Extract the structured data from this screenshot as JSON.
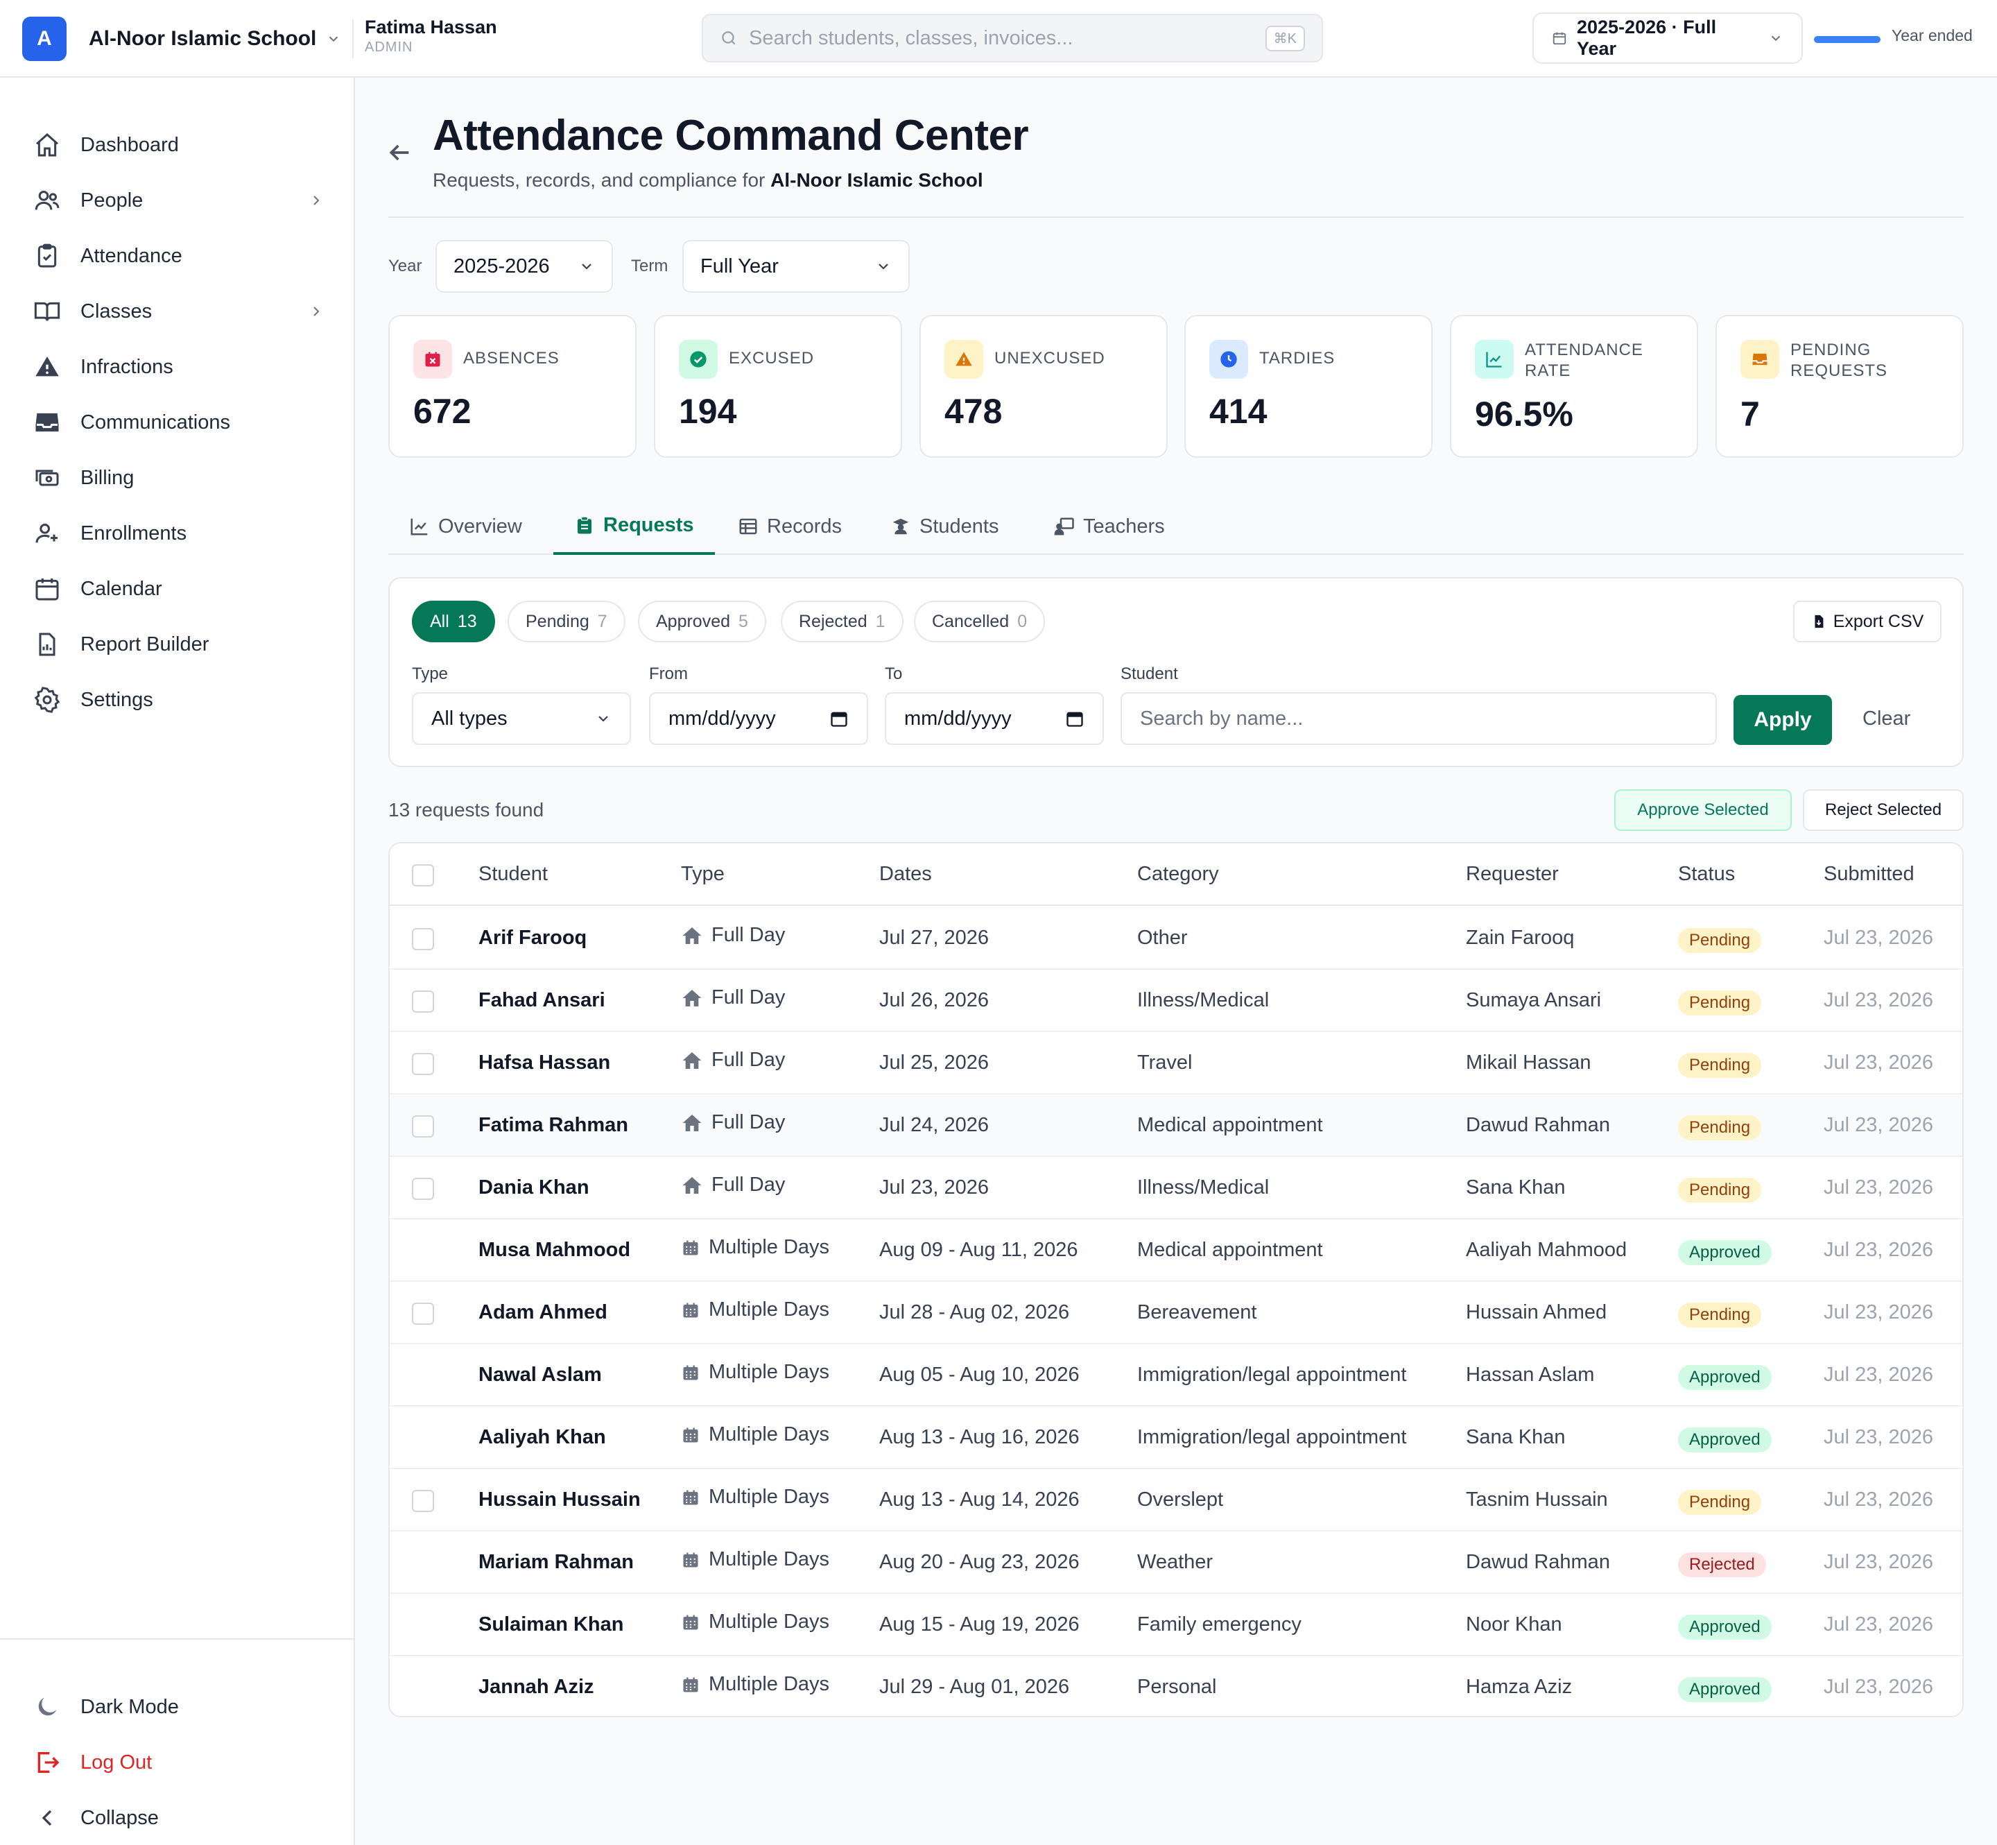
{
  "app": {
    "logo_letter": "A",
    "school_name": "Al-Noor Islamic School",
    "user_name": "Fatima Hassan",
    "user_role": "ADMIN"
  },
  "search": {
    "placeholder": "Search students, classes, invoices...",
    "shortcut": "⌘K"
  },
  "year_selector": {
    "label": "2025-2026 · Full Year",
    "status": "Year ended"
  },
  "sidebar": {
    "items": [
      {
        "label": "Dashboard",
        "icon": "home-icon"
      },
      {
        "label": "People",
        "icon": "users-icon",
        "has_children": true
      },
      {
        "label": "Attendance",
        "icon": "clipboard-check-icon"
      },
      {
        "label": "Classes",
        "icon": "book-open-icon",
        "has_children": true
      },
      {
        "label": "Infractions",
        "icon": "warning-icon"
      },
      {
        "label": "Communications",
        "icon": "inbox-icon"
      },
      {
        "label": "Billing",
        "icon": "cash-icon"
      },
      {
        "label": "Enrollments",
        "icon": "user-plus-icon"
      },
      {
        "label": "Calendar",
        "icon": "calendar-icon"
      },
      {
        "label": "Report Builder",
        "icon": "report-icon"
      },
      {
        "label": "Settings",
        "icon": "gear-icon"
      }
    ],
    "bottom": {
      "dark_mode": "Dark Mode",
      "logout": "Log Out",
      "collapse": "Collapse"
    }
  },
  "page": {
    "title": "Attendance Command Center",
    "subtitle_prefix": "Requests, records, and compliance for",
    "subtitle_school": "Al-Noor Islamic School"
  },
  "filters": {
    "year_label": "Year",
    "year_value": "2025-2026",
    "term_label": "Term",
    "term_value": "Full Year"
  },
  "stats": [
    {
      "label": "ABSENCES",
      "value": "672",
      "color": "#e11d48",
      "bg": "#ffe4e6",
      "icon": "calendar-x-icon"
    },
    {
      "label": "EXCUSED",
      "value": "194",
      "color": "#059669",
      "bg": "#d1fae5",
      "icon": "check-circle-icon"
    },
    {
      "label": "UNEXCUSED",
      "value": "478",
      "color": "#d97706",
      "bg": "#fef3c7",
      "icon": "warning-icon"
    },
    {
      "label": "TARDIES",
      "value": "414",
      "color": "#2563eb",
      "bg": "#dbeafe",
      "icon": "clock-icon"
    },
    {
      "label_line1": "ATTENDANCE",
      "label_line2": "RATE",
      "value": "96.5%",
      "color": "#0d9488",
      "bg": "#ccfbf1",
      "icon": "chart-line-icon"
    },
    {
      "label_line1": "PENDING",
      "label_line2": "REQUESTS",
      "value": "7",
      "color": "#d97706",
      "bg": "#fef3c7",
      "icon": "inbox-icon"
    }
  ],
  "tabs": [
    {
      "label": "Overview",
      "icon": "chart-line-icon"
    },
    {
      "label": "Requests",
      "icon": "clipboard-icon",
      "active": true
    },
    {
      "label": "Records",
      "icon": "table-icon"
    },
    {
      "label": "Students",
      "icon": "student-icon"
    },
    {
      "label": "Teachers",
      "icon": "teacher-icon"
    }
  ],
  "status_filters": [
    {
      "label": "All",
      "count": "13",
      "active": true
    },
    {
      "label": "Pending",
      "count": "7"
    },
    {
      "label": "Approved",
      "count": "5"
    },
    {
      "label": "Rejected",
      "count": "1"
    },
    {
      "label": "Cancelled",
      "count": "0"
    }
  ],
  "export_label": "Export CSV",
  "request_filters": {
    "type_label": "Type",
    "type_value": "All types",
    "from_label": "From",
    "from_value": "mm/dd/yyyy",
    "to_label": "To",
    "to_value": "mm/dd/yyyy",
    "student_label": "Student",
    "student_placeholder": "Search by name...",
    "apply": "Apply",
    "clear": "Clear"
  },
  "results": {
    "count_text": "13 requests found",
    "approve_selected": "Approve Selected",
    "reject_selected": "Reject Selected"
  },
  "table": {
    "columns": [
      "Student",
      "Type",
      "Dates",
      "Category",
      "Requester",
      "Status",
      "Submitted"
    ],
    "rows": [
      {
        "student": "Arif Farooq",
        "type": "Full Day",
        "dates": "Jul 27, 2026",
        "category": "Other",
        "requester": "Zain Farooq",
        "status": "Pending",
        "submitted": "Jul 23, 2026"
      },
      {
        "student": "Fahad Ansari",
        "type": "Full Day",
        "dates": "Jul 26, 2026",
        "category": "Illness/Medical",
        "requester": "Sumaya Ansari",
        "status": "Pending",
        "submitted": "Jul 23, 2026"
      },
      {
        "student": "Hafsa Hassan",
        "type": "Full Day",
        "dates": "Jul 25, 2026",
        "category": "Travel",
        "requester": "Mikail Hassan",
        "status": "Pending",
        "submitted": "Jul 23, 2026"
      },
      {
        "student": "Fatima Rahman",
        "type": "Full Day",
        "dates": "Jul 24, 2026",
        "category": "Medical appointment",
        "requester": "Dawud Rahman",
        "status": "Pending",
        "submitted": "Jul 23, 2026"
      },
      {
        "student": "Dania Khan",
        "type": "Full Day",
        "dates": "Jul 23, 2026",
        "category": "Illness/Medical",
        "requester": "Sana Khan",
        "status": "Pending",
        "submitted": "Jul 23, 2026"
      },
      {
        "student": "Musa Mahmood",
        "type": "Multiple Days",
        "dates": "Aug 09 - Aug 11, 2026",
        "category": "Medical appointment",
        "requester": "Aaliyah Mahmood",
        "status": "Approved",
        "submitted": "Jul 23, 2026"
      },
      {
        "student": "Adam Ahmed",
        "type": "Multiple Days",
        "dates": "Jul 28 - Aug 02, 2026",
        "category": "Bereavement",
        "requester": "Hussain Ahmed",
        "status": "Pending",
        "submitted": "Jul 23, 2026"
      },
      {
        "student": "Nawal Aslam",
        "type": "Multiple Days",
        "dates": "Aug 05 - Aug 10, 2026",
        "category": "Immigration/legal appointment",
        "requester": "Hassan Aslam",
        "status": "Approved",
        "submitted": "Jul 23, 2026"
      },
      {
        "student": "Aaliyah Khan",
        "type": "Multiple Days",
        "dates": "Aug 13 - Aug 16, 2026",
        "category": "Immigration/legal appointment",
        "requester": "Sana Khan",
        "status": "Approved",
        "submitted": "Jul 23, 2026"
      },
      {
        "student": "Hussain Hussain",
        "type": "Multiple Days",
        "dates": "Aug 13 - Aug 14, 2026",
        "category": "Overslept",
        "requester": "Tasnim Hussain",
        "status": "Pending",
        "submitted": "Jul 23, 2026"
      },
      {
        "student": "Mariam Rahman",
        "type": "Multiple Days",
        "dates": "Aug 20 - Aug 23, 2026",
        "category": "Weather",
        "requester": "Dawud Rahman",
        "status": "Rejected",
        "submitted": "Jul 23, 2026"
      },
      {
        "student": "Sulaiman Khan",
        "type": "Multiple Days",
        "dates": "Aug 15 - Aug 19, 2026",
        "category": "Family emergency",
        "requester": "Noor Khan",
        "status": "Approved",
        "submitted": "Jul 23, 2026"
      },
      {
        "student": "Jannah Aziz",
        "type": "Multiple Days",
        "dates": "Jul 29 - Aug 01, 2026",
        "category": "Personal",
        "requester": "Hamza Aziz",
        "status": "Approved",
        "submitted": "Jul 23, 2026"
      }
    ]
  }
}
